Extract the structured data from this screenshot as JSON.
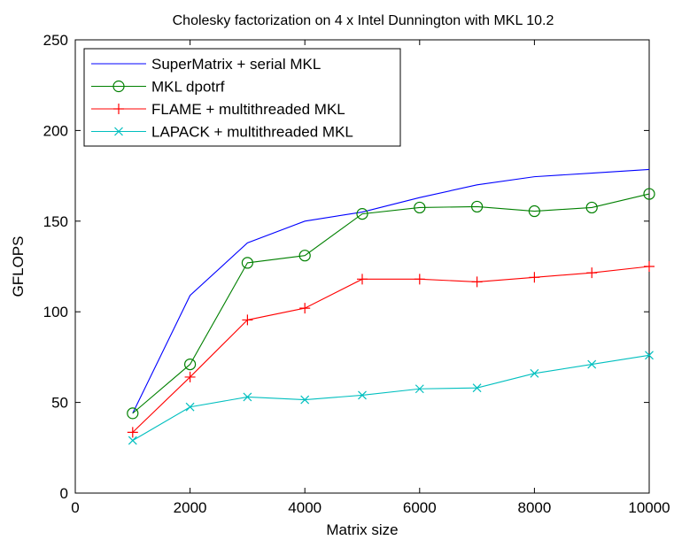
{
  "chart_data": {
    "type": "line",
    "title": "Cholesky factorization on 4 x Intel Dunnington with MKL 10.2",
    "xlabel": "Matrix size",
    "ylabel": "GFLOPS",
    "xlim": [
      0,
      10000
    ],
    "ylim": [
      0,
      250
    ],
    "xticks": [
      0,
      2000,
      4000,
      6000,
      8000,
      10000
    ],
    "yticks": [
      0,
      50,
      100,
      150,
      200,
      250
    ],
    "grid": false,
    "legend_position": "top-left",
    "x": [
      1000,
      2000,
      3000,
      4000,
      5000,
      6000,
      7000,
      8000,
      9000,
      10000
    ],
    "series": [
      {
        "name": "SuperMatrix + serial MKL",
        "color": "#0000ff",
        "marker": "none",
        "values": [
          44,
          109,
          138,
          150,
          155,
          163,
          170,
          174.5,
          176.5,
          178.5
        ]
      },
      {
        "name": "MKL dpotrf",
        "color": "#008000",
        "marker": "circle",
        "values": [
          44,
          71,
          127,
          131,
          154,
          157.5,
          158,
          155.5,
          157.5,
          165
        ]
      },
      {
        "name": "FLAME + multithreaded MKL",
        "color": "#ff0000",
        "marker": "plus",
        "values": [
          33.5,
          64,
          95.5,
          102,
          118,
          118,
          116.5,
          119,
          121.5,
          125
        ]
      },
      {
        "name": "LAPACK + multithreaded MKL",
        "color": "#00bfbf",
        "marker": "x",
        "values": [
          29,
          47.5,
          53,
          51.5,
          54,
          57.5,
          58,
          66,
          71,
          76
        ]
      }
    ]
  }
}
